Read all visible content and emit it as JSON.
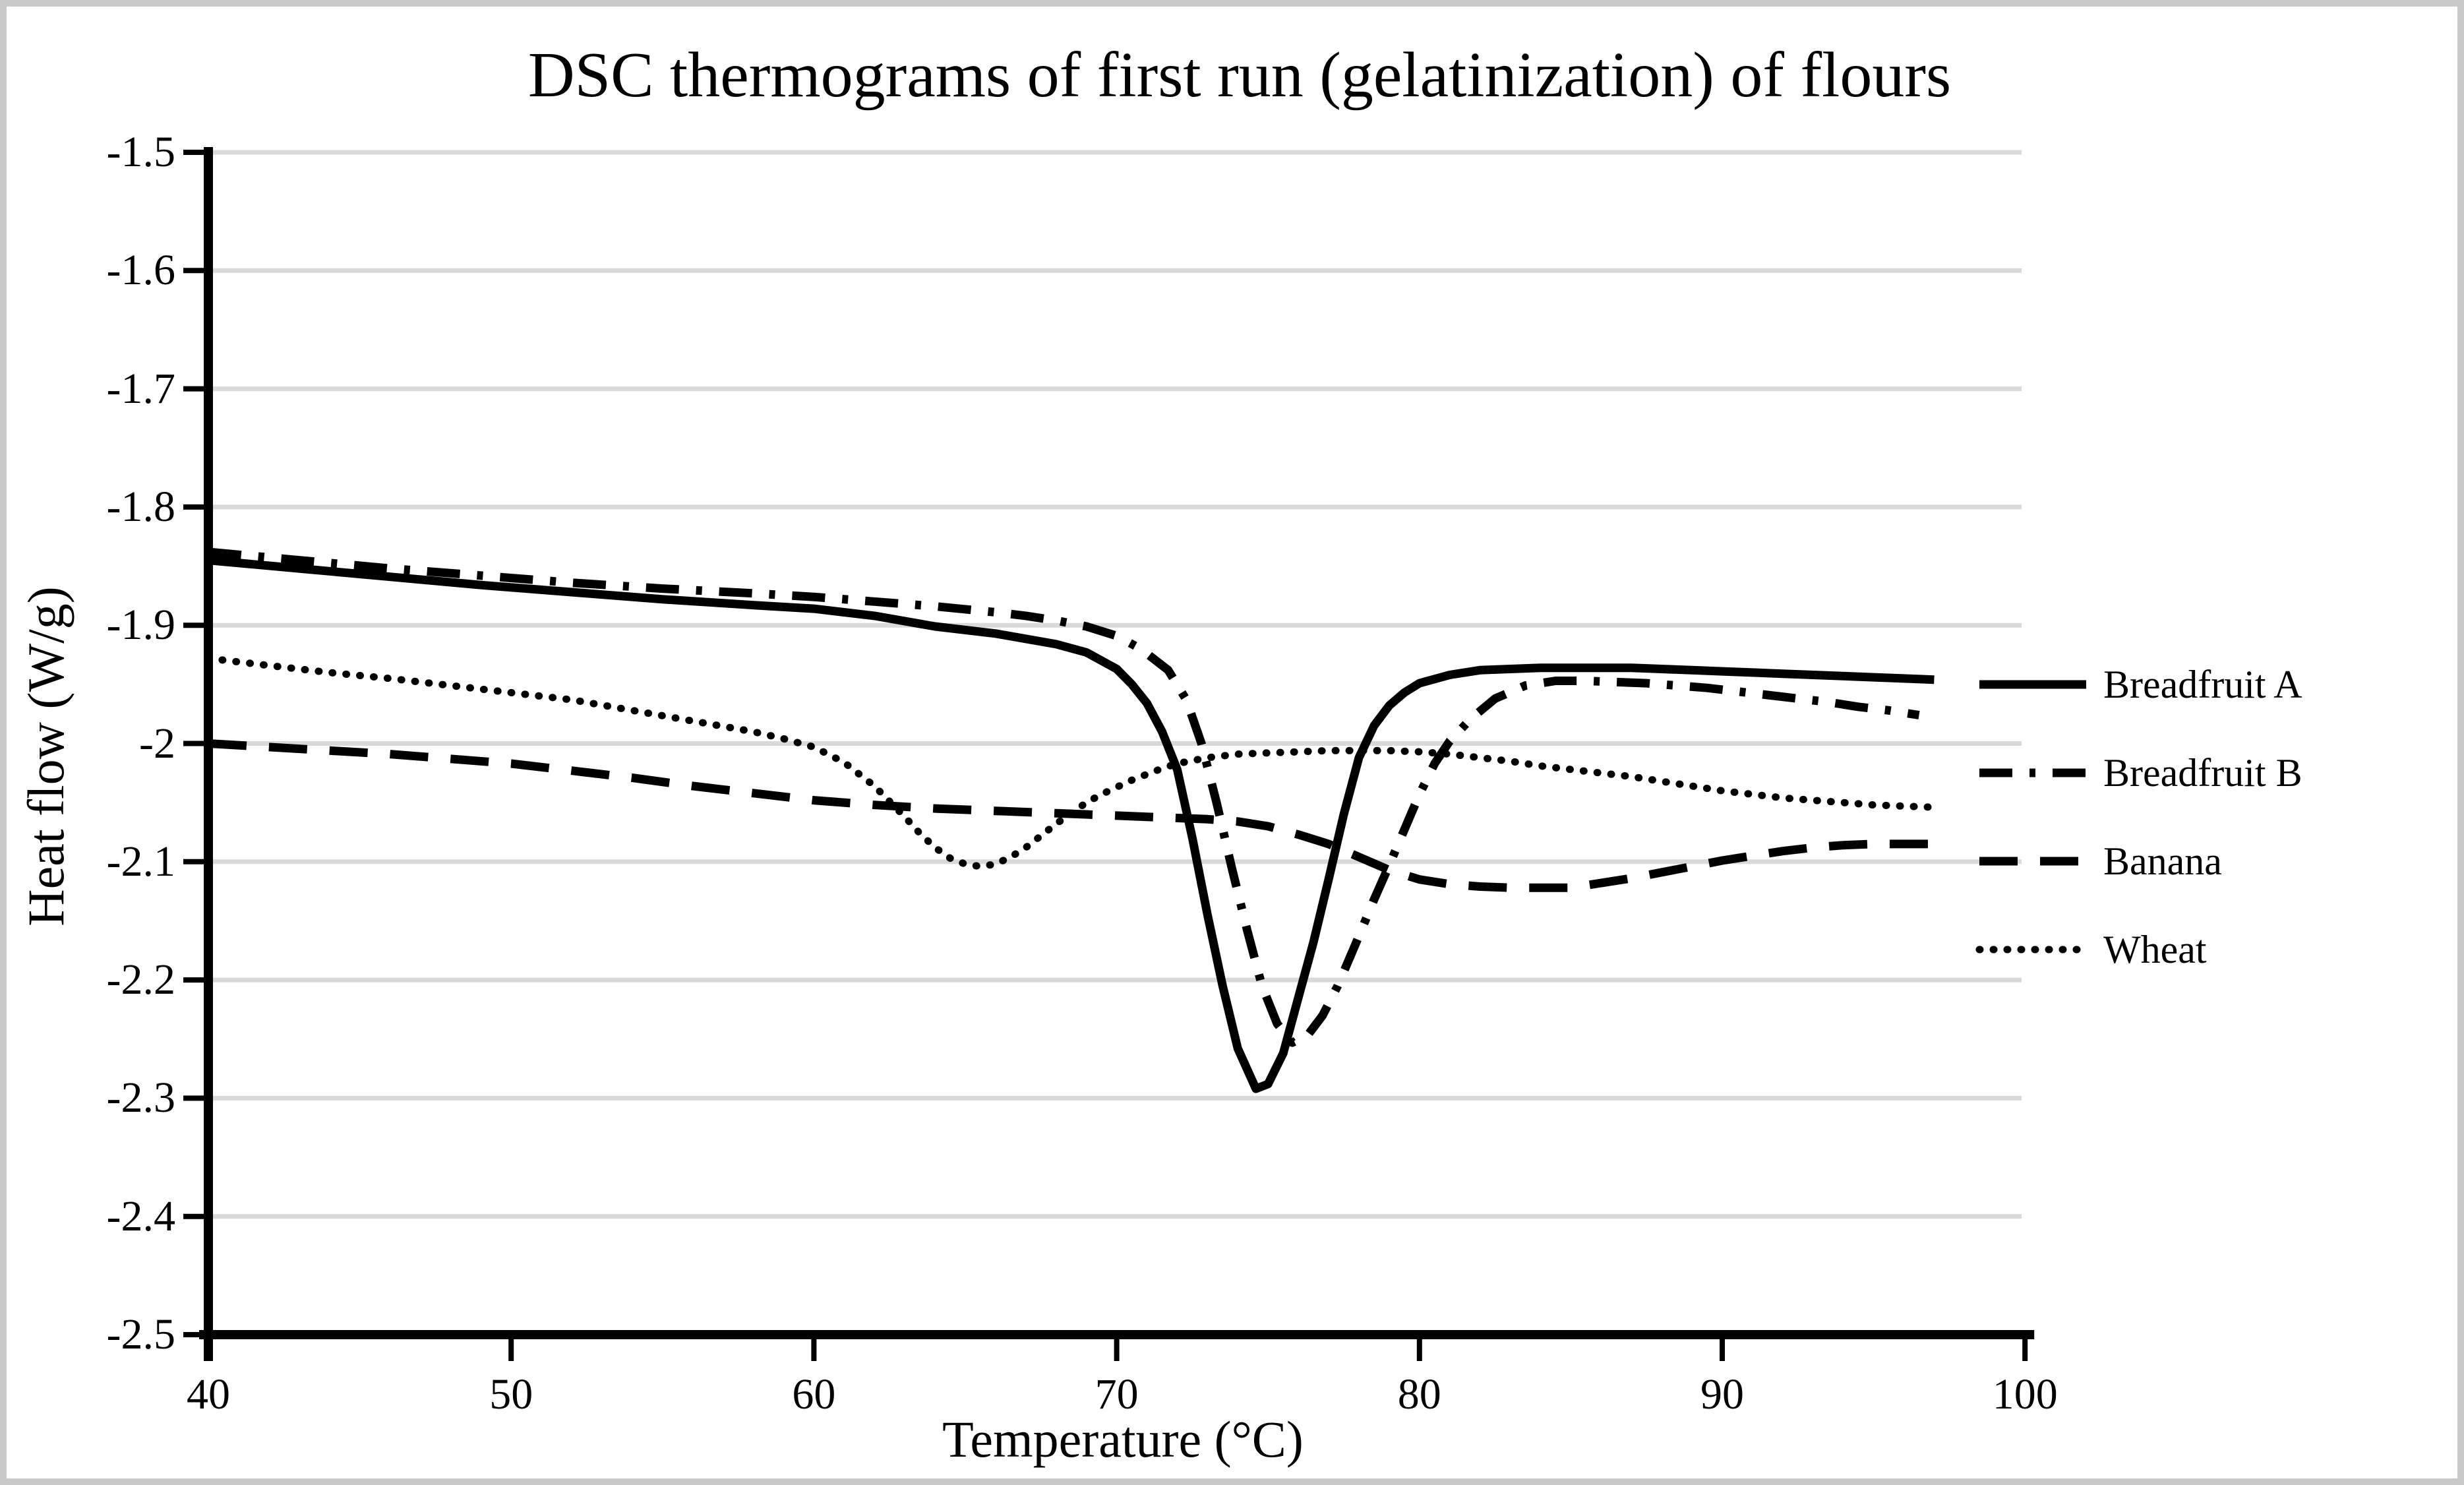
{
  "chart_data": {
    "type": "line",
    "title": "DSC thermograms of first run (gelatinization) of flours",
    "xlabel": "Temperature (°C)",
    "ylabel": "Heat flow (W/g)",
    "xlim": [
      40,
      100
    ],
    "ylim": [
      -2.5,
      -1.5
    ],
    "grid": "horizontal",
    "grid_color": "#d9d9d9",
    "line_color": "#000000",
    "legend_position": "right",
    "x_ticks": [
      {
        "label": "40",
        "v": 40
      },
      {
        "label": "50",
        "v": 50
      },
      {
        "label": "60",
        "v": 60
      },
      {
        "label": "70",
        "v": 70
      },
      {
        "label": "80",
        "v": 80
      },
      {
        "label": "90",
        "v": 90
      },
      {
        "label": "100",
        "v": 100
      }
    ],
    "y_ticks": [
      {
        "label": "-1.5",
        "v": -1.5
      },
      {
        "label": "-1.6",
        "v": -1.6
      },
      {
        "label": "-1.7",
        "v": -1.7
      },
      {
        "label": "-1.8",
        "v": -1.8
      },
      {
        "label": "-1.9",
        "v": -1.9
      },
      {
        "label": "-2",
        "v": -2.0
      },
      {
        "label": "-2.1",
        "v": -2.1
      },
      {
        "label": "-2.2",
        "v": -2.2
      },
      {
        "label": "-2.3",
        "v": -2.3
      },
      {
        "label": "-2.4",
        "v": -2.4
      },
      {
        "label": "-2.5",
        "v": -2.5
      }
    ],
    "series": [
      {
        "name": "Breadfruit A",
        "style": "solid",
        "points": [
          [
            40,
            -1.845
          ],
          [
            43,
            -1.852
          ],
          [
            46,
            -1.859
          ],
          [
            49,
            -1.866
          ],
          [
            52,
            -1.872
          ],
          [
            55,
            -1.878
          ],
          [
            58,
            -1.883
          ],
          [
            60,
            -1.886
          ],
          [
            62,
            -1.892
          ],
          [
            64,
            -1.901
          ],
          [
            66,
            -1.907
          ],
          [
            68,
            -1.916
          ],
          [
            69,
            -1.923
          ],
          [
            70,
            -1.937
          ],
          [
            70.5,
            -1.95
          ],
          [
            71,
            -1.966
          ],
          [
            71.5,
            -1.99
          ],
          [
            72,
            -2.022
          ],
          [
            72.5,
            -2.08
          ],
          [
            73,
            -2.145
          ],
          [
            73.5,
            -2.205
          ],
          [
            74,
            -2.258
          ],
          [
            74.6,
            -2.292
          ],
          [
            75,
            -2.288
          ],
          [
            75.5,
            -2.262
          ],
          [
            76,
            -2.215
          ],
          [
            76.5,
            -2.168
          ],
          [
            77,
            -2.115
          ],
          [
            77.5,
            -2.06
          ],
          [
            78,
            -2.012
          ],
          [
            78.5,
            -1.985
          ],
          [
            79,
            -1.968
          ],
          [
            79.5,
            -1.957
          ],
          [
            80,
            -1.949
          ],
          [
            81,
            -1.942
          ],
          [
            82,
            -1.938
          ],
          [
            83,
            -1.937
          ],
          [
            84,
            -1.936
          ],
          [
            85,
            -1.936
          ],
          [
            86,
            -1.936
          ],
          [
            87,
            -1.936
          ],
          [
            88,
            -1.937
          ],
          [
            89,
            -1.938
          ],
          [
            90,
            -1.939
          ],
          [
            91,
            -1.94
          ],
          [
            92,
            -1.941
          ],
          [
            93,
            -1.942
          ],
          [
            94,
            -1.943
          ],
          [
            95,
            -1.944
          ],
          [
            96,
            -1.945
          ],
          [
            97,
            -1.946
          ]
        ]
      },
      {
        "name": "Breadfruit B",
        "style": "dash-dot",
        "points": [
          [
            40,
            -1.838
          ],
          [
            43,
            -1.845
          ],
          [
            46,
            -1.852
          ],
          [
            49,
            -1.858
          ],
          [
            52,
            -1.864
          ],
          [
            55,
            -1.869
          ],
          [
            58,
            -1.873
          ],
          [
            60,
            -1.876
          ],
          [
            62,
            -1.88
          ],
          [
            64,
            -1.884
          ],
          [
            66,
            -1.889
          ],
          [
            67,
            -1.892
          ],
          [
            68,
            -1.896
          ],
          [
            69,
            -1.901
          ],
          [
            70,
            -1.909
          ],
          [
            70.8,
            -1.92
          ],
          [
            71.7,
            -1.938
          ],
          [
            72.3,
            -1.963
          ],
          [
            72.8,
            -2.0
          ],
          [
            73.3,
            -2.05
          ],
          [
            73.8,
            -2.105
          ],
          [
            74.3,
            -2.157
          ],
          [
            74.8,
            -2.205
          ],
          [
            75.3,
            -2.237
          ],
          [
            75.8,
            -2.253
          ],
          [
            76.3,
            -2.247
          ],
          [
            76.8,
            -2.23
          ],
          [
            77.3,
            -2.205
          ],
          [
            77.9,
            -2.169
          ],
          [
            78.5,
            -2.132
          ],
          [
            79,
            -2.103
          ],
          [
            79.5,
            -2.073
          ],
          [
            80,
            -2.043
          ],
          [
            80.5,
            -2.017
          ],
          [
            81,
            -1.998
          ],
          [
            81.7,
            -1.979
          ],
          [
            82.5,
            -1.962
          ],
          [
            83.5,
            -1.951
          ],
          [
            84.5,
            -1.947
          ],
          [
            85.5,
            -1.947
          ],
          [
            86.5,
            -1.948
          ],
          [
            87.5,
            -1.949
          ],
          [
            88.5,
            -1.951
          ],
          [
            89.5,
            -1.953
          ],
          [
            90.5,
            -1.956
          ],
          [
            91.5,
            -1.959
          ],
          [
            92.5,
            -1.962
          ],
          [
            93.5,
            -1.965
          ],
          [
            94.5,
            -1.969
          ],
          [
            95.5,
            -1.972
          ],
          [
            96.5,
            -1.976
          ]
        ]
      },
      {
        "name": "Banana",
        "style": "dashed",
        "points": [
          [
            40,
            -2.0
          ],
          [
            42,
            -2.003
          ],
          [
            44,
            -2.006
          ],
          [
            46,
            -2.009
          ],
          [
            48,
            -2.013
          ],
          [
            50,
            -2.017
          ],
          [
            52,
            -2.023
          ],
          [
            54,
            -2.029
          ],
          [
            56,
            -2.036
          ],
          [
            58,
            -2.042
          ],
          [
            60,
            -2.048
          ],
          [
            62,
            -2.052
          ],
          [
            64,
            -2.055
          ],
          [
            66,
            -2.057
          ],
          [
            68,
            -2.059
          ],
          [
            70,
            -2.061
          ],
          [
            72,
            -2.063
          ],
          [
            73,
            -2.064
          ],
          [
            74,
            -2.066
          ],
          [
            75,
            -2.07
          ],
          [
            76,
            -2.077
          ],
          [
            77,
            -2.085
          ],
          [
            78,
            -2.096
          ],
          [
            79,
            -2.107
          ],
          [
            80,
            -2.115
          ],
          [
            81,
            -2.119
          ],
          [
            82,
            -2.121
          ],
          [
            83,
            -2.122
          ],
          [
            84,
            -2.122
          ],
          [
            85,
            -2.122
          ],
          [
            86,
            -2.118
          ],
          [
            87,
            -2.114
          ],
          [
            88,
            -2.109
          ],
          [
            89,
            -2.104
          ],
          [
            90,
            -2.099
          ],
          [
            91,
            -2.095
          ],
          [
            92,
            -2.091
          ],
          [
            93,
            -2.088
          ],
          [
            94,
            -2.086
          ],
          [
            95,
            -2.085
          ],
          [
            96,
            -2.085
          ],
          [
            97,
            -2.085
          ]
        ]
      },
      {
        "name": "Wheat",
        "style": "dotted",
        "points": [
          [
            40,
            -1.928
          ],
          [
            42,
            -1.934
          ],
          [
            44,
            -1.94
          ],
          [
            46,
            -1.945
          ],
          [
            48,
            -1.951
          ],
          [
            50,
            -1.957
          ],
          [
            52,
            -1.963
          ],
          [
            54,
            -1.972
          ],
          [
            56,
            -1.981
          ],
          [
            58,
            -1.99
          ],
          [
            59,
            -1.996
          ],
          [
            60,
            -2.003
          ],
          [
            61,
            -2.016
          ],
          [
            62,
            -2.036
          ],
          [
            63,
            -2.062
          ],
          [
            63.5,
            -2.076
          ],
          [
            64,
            -2.088
          ],
          [
            64.5,
            -2.097
          ],
          [
            65,
            -2.102
          ],
          [
            65.5,
            -2.104
          ],
          [
            66,
            -2.102
          ],
          [
            66.5,
            -2.096
          ],
          [
            67,
            -2.088
          ],
          [
            67.5,
            -2.078
          ],
          [
            68,
            -2.068
          ],
          [
            68.5,
            -2.059
          ],
          [
            69,
            -2.05
          ],
          [
            69.5,
            -2.043
          ],
          [
            70,
            -2.037
          ],
          [
            70.5,
            -2.031
          ],
          [
            71,
            -2.026
          ],
          [
            71.5,
            -2.021
          ],
          [
            72,
            -2.017
          ],
          [
            73,
            -2.012
          ],
          [
            74,
            -2.009
          ],
          [
            75,
            -2.008
          ],
          [
            76,
            -2.007
          ],
          [
            77,
            -2.006
          ],
          [
            78,
            -2.006
          ],
          [
            79,
            -2.006
          ],
          [
            80,
            -2.007
          ],
          [
            81,
            -2.009
          ],
          [
            82,
            -2.012
          ],
          [
            83,
            -2.015
          ],
          [
            84,
            -2.019
          ],
          [
            85,
            -2.022
          ],
          [
            86,
            -2.025
          ],
          [
            87,
            -2.028
          ],
          [
            88,
            -2.032
          ],
          [
            89,
            -2.036
          ],
          [
            90,
            -2.04
          ],
          [
            91,
            -2.043
          ],
          [
            92,
            -2.046
          ],
          [
            93,
            -2.048
          ],
          [
            94,
            -2.05
          ],
          [
            95,
            -2.052
          ],
          [
            96,
            -2.053
          ],
          [
            97,
            -2.054
          ]
        ]
      }
    ]
  }
}
